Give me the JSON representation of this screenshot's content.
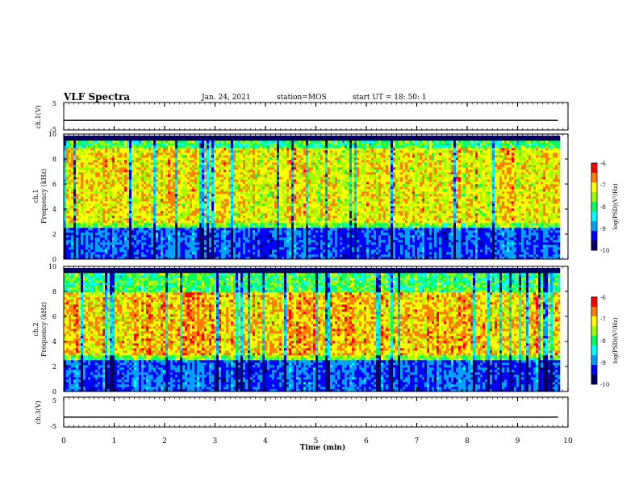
{
  "header": {
    "title": "VLF Spectra",
    "date": "Jan. 24, 2021",
    "station": "station=MOS",
    "start": "start UT =  18: 50: 1"
  },
  "colors": {
    "scale": [
      "#000060",
      "#0000ff",
      "#00a0ff",
      "#00ffff",
      "#00ff60",
      "#9cff00",
      "#ffff00",
      "#ff8000",
      "#ff0000",
      "#ffffff"
    ],
    "background": "#ffffff",
    "axes": "#000000"
  },
  "chart_data": [
    {
      "type": "line",
      "panel": "ch1-voltage",
      "ylabel": "ch.1(V)",
      "ylim": [
        -5,
        5
      ],
      "yticks": [
        "5",
        "-5"
      ],
      "series": [
        {
          "x": [
            0,
            9.8
          ],
          "y": [
            -1.5,
            -1.5
          ]
        }
      ]
    },
    {
      "type": "heatmap",
      "panel": "ch1-spectrogram",
      "ylabel": "ch.1\nFrequency (kHz)",
      "ylim": [
        0,
        10
      ],
      "yticks": [
        "0",
        "2",
        "4",
        "6",
        "8",
        "10"
      ],
      "xlim": [
        0,
        10
      ],
      "colorbar": {
        "label": "log(PSD)(V²/Hz)",
        "range": [
          -10,
          -6
        ],
        "ticks": [
          "-6",
          "-7",
          "-8",
          "-9",
          "-10"
        ]
      },
      "dominant_band_khz": [
        3,
        9
      ],
      "peak_log_psd": -7
    },
    {
      "type": "heatmap",
      "panel": "ch2-spectrogram",
      "ylabel": "ch.2\nFrequency (kHz)",
      "ylim": [
        0,
        10
      ],
      "yticks": [
        "0",
        "2",
        "4",
        "6",
        "8",
        "10"
      ],
      "xlim": [
        0,
        10
      ],
      "colorbar": {
        "label": "log(PSD)(V²/Hz)",
        "range": [
          -10,
          -6
        ],
        "ticks": [
          "-6",
          "-7",
          "-8",
          "-9",
          "-10"
        ]
      },
      "dominant_band_khz": [
        3,
        8
      ],
      "peak_log_psd": -6.8
    },
    {
      "type": "line",
      "panel": "ch3-voltage",
      "ylabel": "ch.3(V)",
      "ylim": [
        -5,
        5
      ],
      "yticks": [
        "5",
        "-5"
      ],
      "xlabel": "Time (min)",
      "xlim": [
        0,
        10
      ],
      "xticks": [
        "0",
        "1",
        "2",
        "3",
        "4",
        "5",
        "6",
        "7",
        "8",
        "9",
        "10"
      ],
      "series": [
        {
          "x": [
            0,
            9.8
          ],
          "y": [
            -1.7,
            -1.7
          ]
        }
      ]
    }
  ]
}
